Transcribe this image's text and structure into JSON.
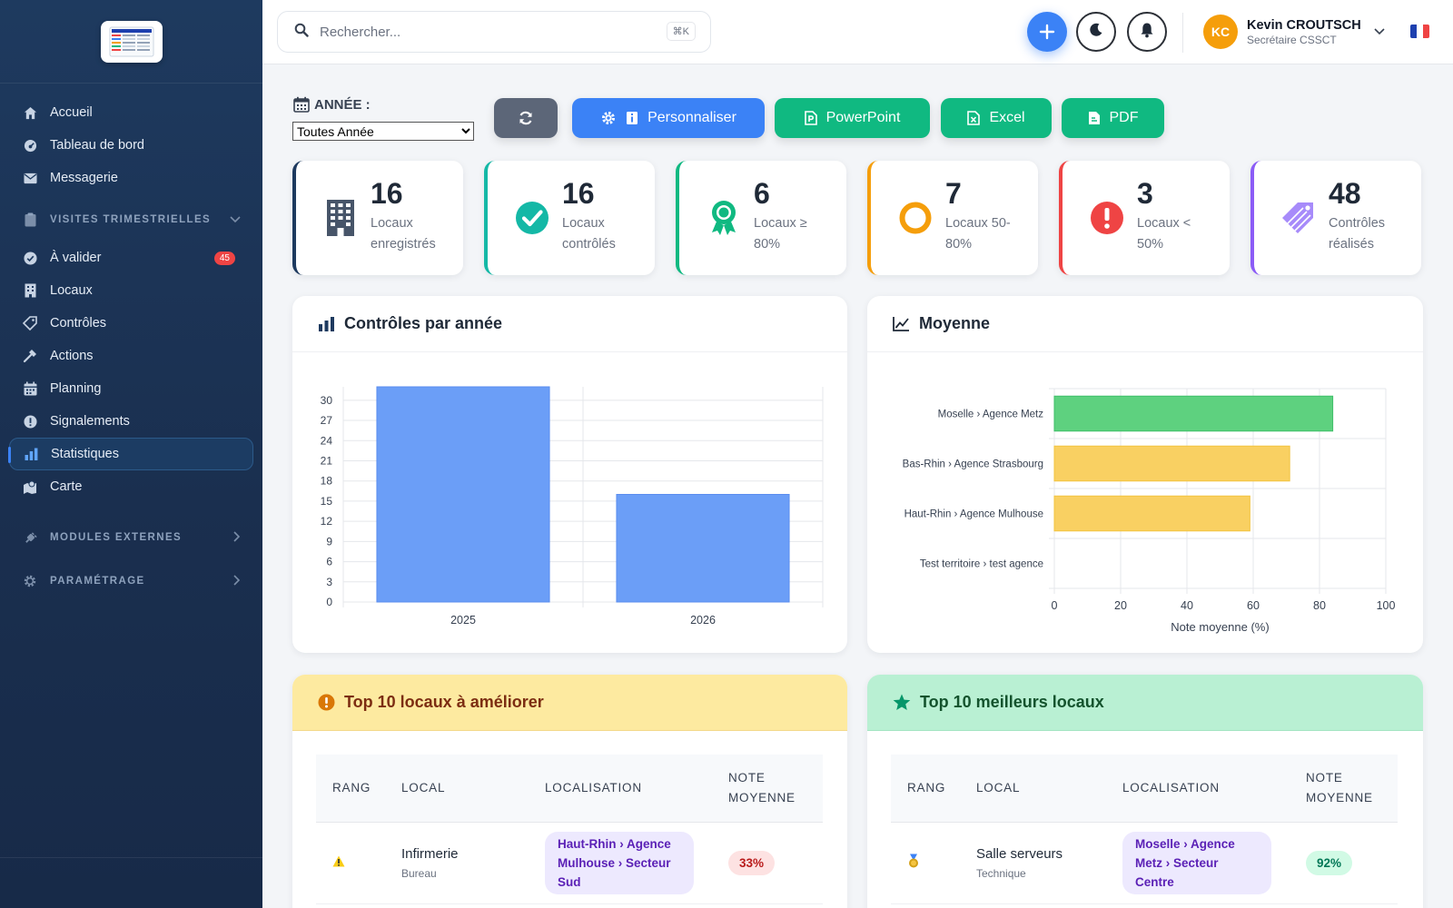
{
  "sidebar": {
    "items": [
      {
        "label": "Accueil",
        "icon": "home-icon"
      },
      {
        "label": "Tableau de bord",
        "icon": "dashboard-icon"
      },
      {
        "label": "Messagerie",
        "icon": "mail-icon"
      }
    ],
    "section_visites": {
      "label": "VISITES TRIMESTRIELLES",
      "icon": "clipboard-icon"
    },
    "visites_items": [
      {
        "label": "À valider",
        "icon": "check-circle-icon",
        "badge": "45"
      },
      {
        "label": "Locaux",
        "icon": "building-icon"
      },
      {
        "label": "Contrôles",
        "icon": "tag-icon"
      },
      {
        "label": "Actions",
        "icon": "hammer-icon"
      },
      {
        "label": "Planning",
        "icon": "calendar-icon"
      },
      {
        "label": "Signalements",
        "icon": "alert-icon"
      },
      {
        "label": "Statistiques",
        "icon": "bar-chart-icon",
        "active": true
      },
      {
        "label": "Carte",
        "icon": "map-icon"
      }
    ],
    "section_modules": {
      "label": "MODULES EXTERNES",
      "icon": "plug-icon"
    },
    "section_param": {
      "label": "PARAMÉTRAGE",
      "icon": "gear-icon"
    }
  },
  "topbar": {
    "search_placeholder": "Rechercher...",
    "search_shortcut": "⌘K",
    "user_initials": "KC",
    "user_name": "Kevin CROUTSCH",
    "user_role": "Secrétaire CSSCT"
  },
  "toolbar": {
    "year_label": "ANNÉE :",
    "year_selected": "Toutes Année",
    "customize_label": "Personnaliser",
    "ppt_label": "PowerPoint",
    "excel_label": "Excel",
    "pdf_label": "PDF"
  },
  "kpis": [
    {
      "value": "16",
      "label": "Locaux enregistrés",
      "color": "#1e3a5f",
      "icon": "building-icon"
    },
    {
      "value": "16",
      "label": "Locaux contrôlés",
      "color": "#14b8a6",
      "icon": "check-circle-icon"
    },
    {
      "value": "6",
      "label": "Locaux ≥ 80%",
      "color": "#10b981",
      "icon": "award-icon"
    },
    {
      "value": "7",
      "label": "Locaux 50-80%",
      "color": "#f59e0b",
      "icon": "ring-icon"
    },
    {
      "value": "3",
      "label": "Locaux < 50%",
      "color": "#ef4444",
      "icon": "exclamation-icon"
    },
    {
      "value": "48",
      "label": "Contrôles réalisés",
      "color": "#8b5cf6",
      "icon": "tags-icon"
    }
  ],
  "panels": {
    "controls_title": "Contrôles par année",
    "avg_title": "Moyenne",
    "worst_title": "Top 10 locaux à améliorer",
    "best_title": "Top 10 meilleurs locaux"
  },
  "chart_data": [
    {
      "type": "bar",
      "title": "Contrôles par année",
      "categories": [
        "2025",
        "2026"
      ],
      "values": [
        32,
        16
      ],
      "ylim": [
        0,
        32
      ],
      "yticks": [
        0,
        3,
        6,
        9,
        12,
        15,
        18,
        21,
        24,
        27,
        30
      ],
      "color": "#6b9ef7",
      "grid": true
    },
    {
      "type": "bar",
      "orientation": "horizontal",
      "title": "Moyenne",
      "categories": [
        "Moselle › Agence Metz",
        "Bas-Rhin › Agence Strasbourg",
        "Haut-Rhin › Agence Mulhouse",
        "Test territoire › test agence"
      ],
      "values": [
        84,
        71,
        59,
        0
      ],
      "colors": [
        "#5ed17f",
        "#f9d062",
        "#f9d062",
        "#f9d062"
      ],
      "xlim": [
        0,
        100
      ],
      "xticks": [
        0,
        20,
        40,
        60,
        80,
        100
      ],
      "xlabel": "Note moyenne (%)",
      "grid": true
    }
  ],
  "worst_table": {
    "headers": [
      "RANG",
      "LOCAL",
      "LOCALISATION",
      "NOTE MOYENNE"
    ],
    "rows": [
      {
        "rank_icon": "warning-icon",
        "local": "Infirmerie",
        "sub": "Bureau",
        "location": "Haut-Rhin › Agence Mulhouse › Secteur Sud",
        "note": "33%"
      }
    ]
  },
  "best_table": {
    "headers": [
      "RANG",
      "LOCAL",
      "LOCALISATION",
      "NOTE MOYENNE"
    ],
    "rows": [
      {
        "rank_icon": "medal-icon",
        "local": "Salle serveurs",
        "sub": "Technique",
        "location": "Moselle › Agence Metz › Secteur Centre",
        "note": "92%"
      }
    ]
  }
}
